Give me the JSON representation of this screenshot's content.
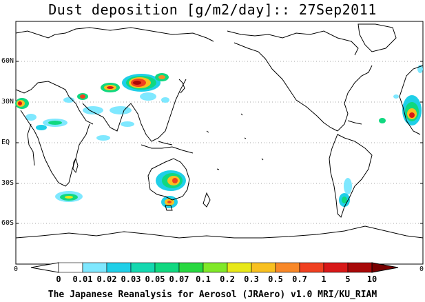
{
  "title": "Dust deposition [g/m2/day]:: 27Sep2011",
  "lat_labels": [
    "60N",
    "30N",
    "EQ",
    "30S",
    "60S"
  ],
  "x_edge_label": "0",
  "colorbar": {
    "labels": [
      "0",
      "0.01",
      "0.02",
      "0.03",
      "0.05",
      "0.07",
      "0.1",
      "0.2",
      "0.3",
      "0.5",
      "0.7",
      "1",
      "5",
      "10"
    ],
    "colors": [
      "#ffffff",
      "#ffffff",
      "#7fe8ff",
      "#1fcfe8",
      "#14d8b0",
      "#10d880",
      "#28d840",
      "#80e828",
      "#e8e818",
      "#f8c020",
      "#f88828",
      "#f04020",
      "#d81818",
      "#a80808",
      "#780000"
    ]
  },
  "credit": "The Japanese Reanalysis for Aerosol (JRAero) v1.0 MRI/KU_RIAM"
}
